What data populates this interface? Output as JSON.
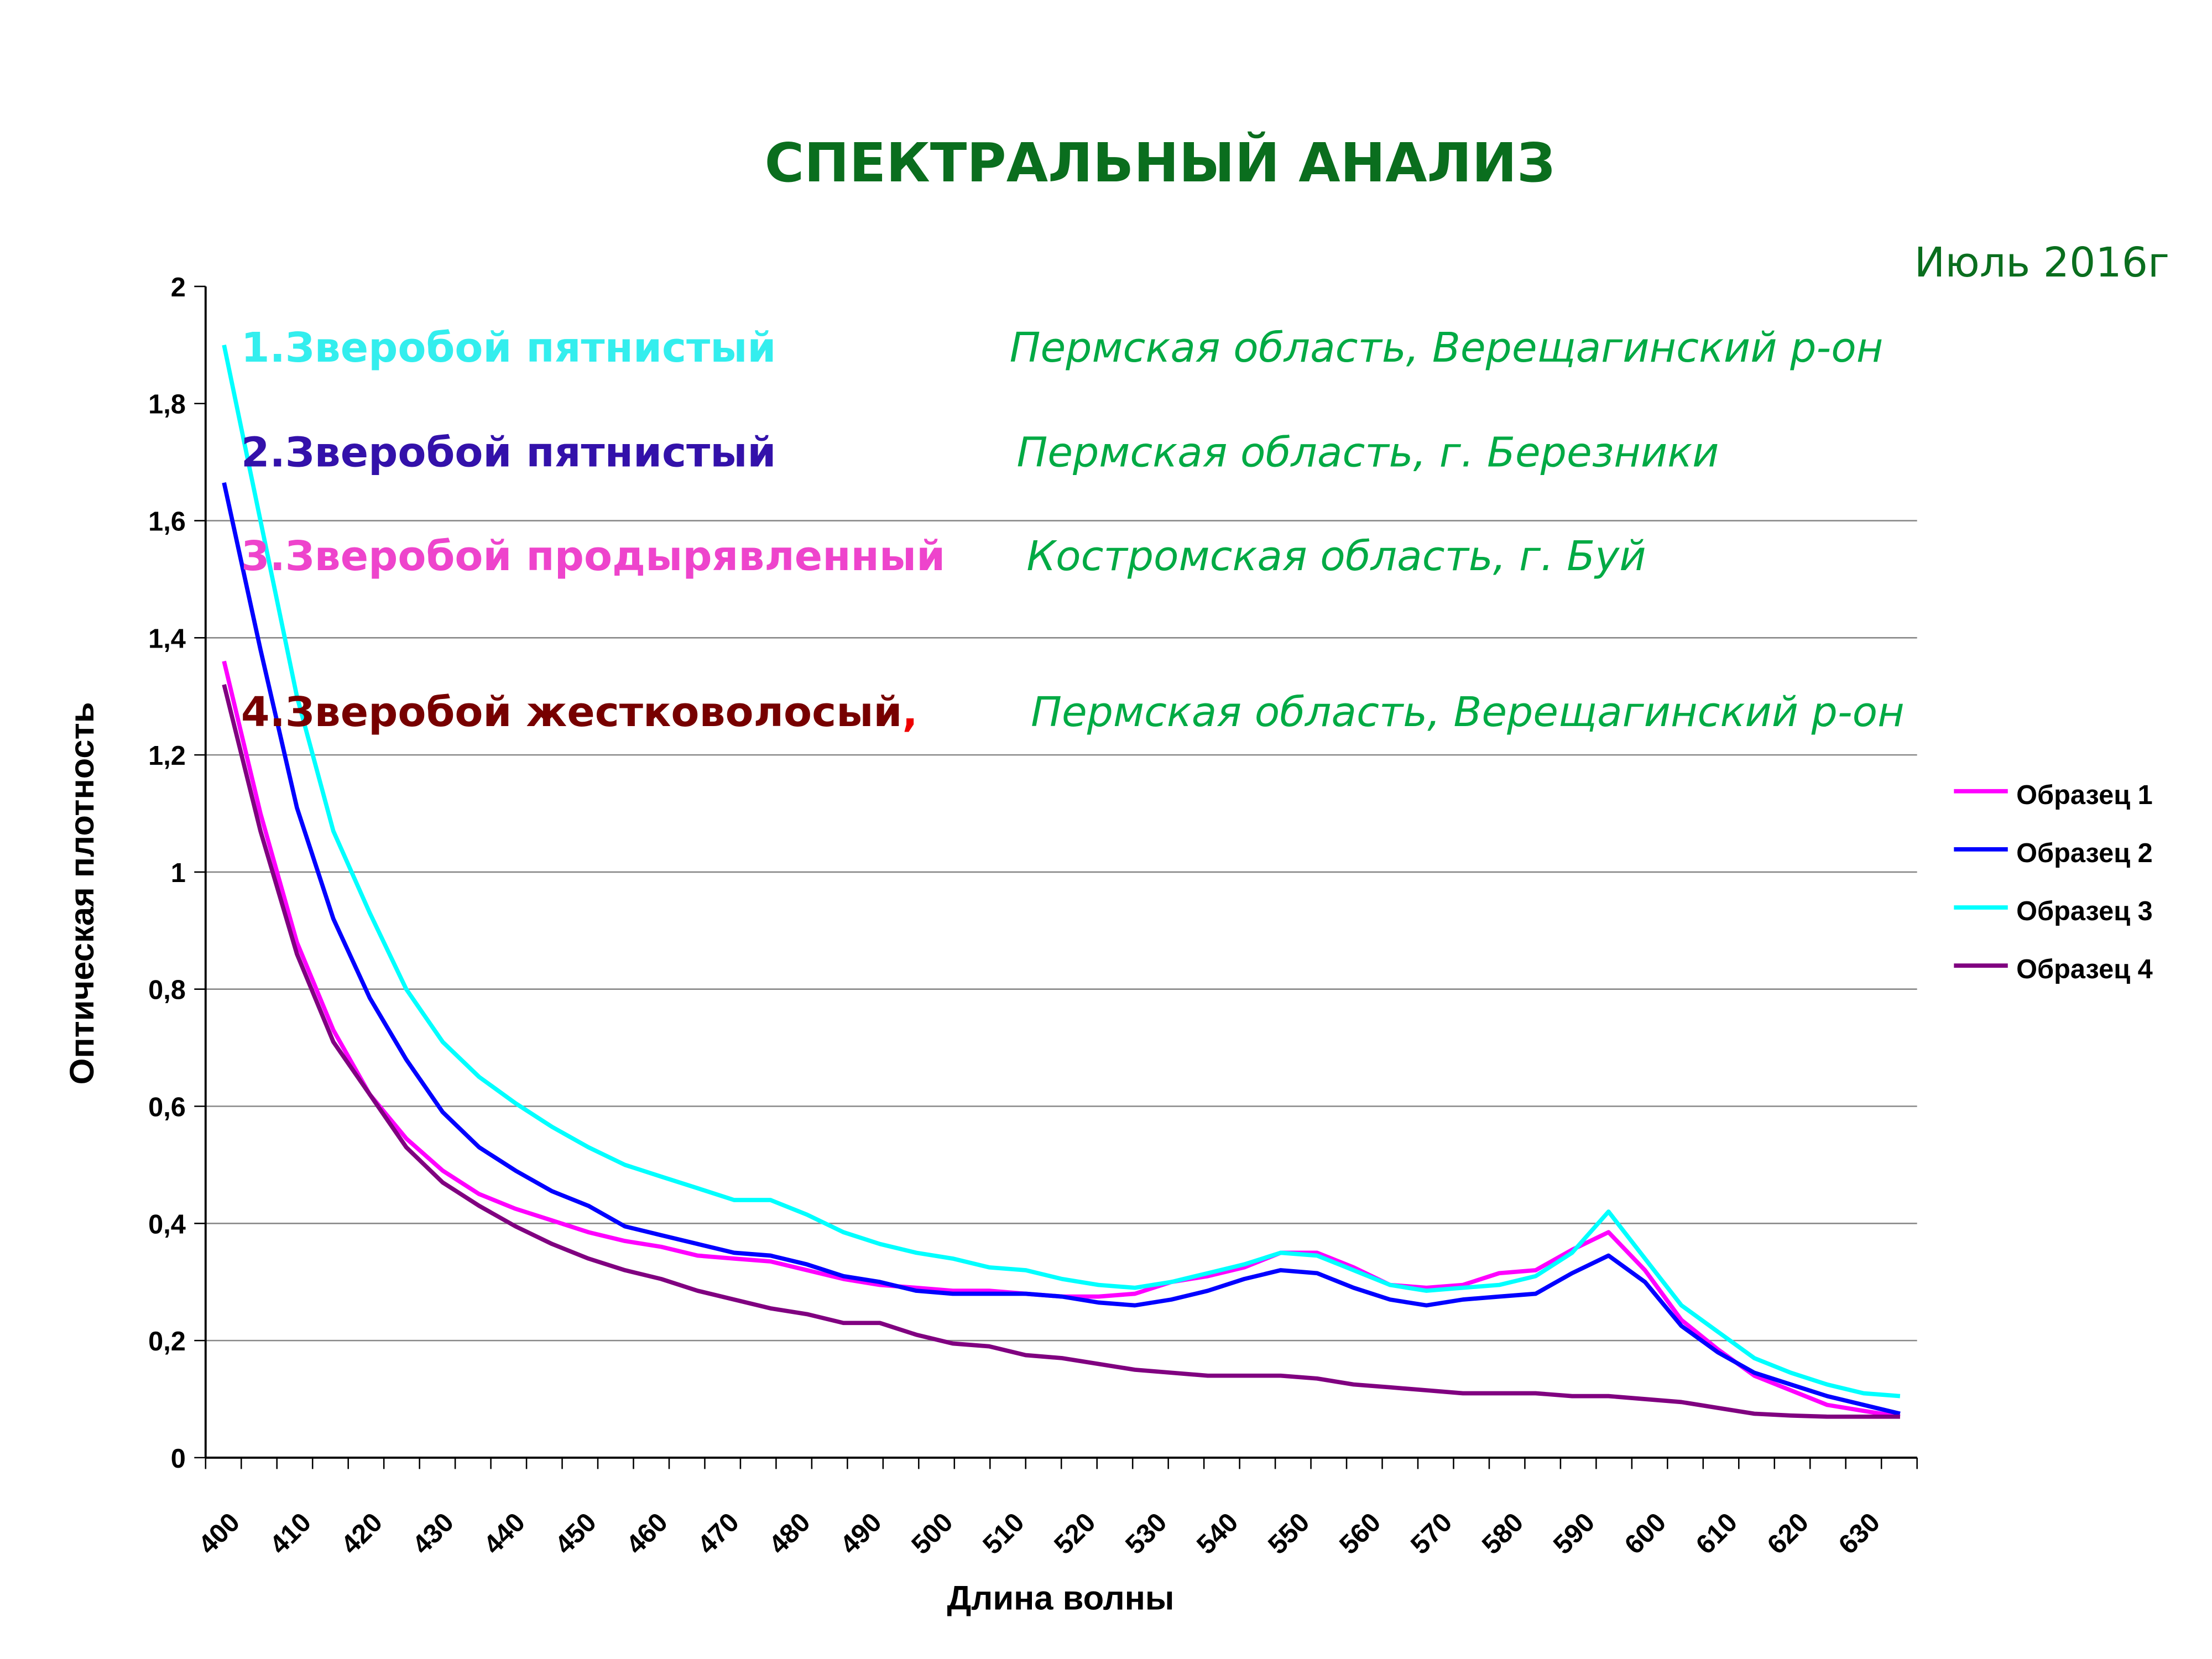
{
  "chart_data": {
    "type": "line",
    "title": "СПЕКТРАЛЬНЫЙ АНАЛИЗ",
    "subtitle": "Июль 2016г",
    "xlabel": "Длина волны",
    "ylabel": "Оптическая плотность",
    "ylim": [
      0,
      2
    ],
    "yticks": [
      "0",
      "0,2",
      "0,4",
      "0,6",
      "0,8",
      "1",
      "1,2",
      "1,4",
      "1,6",
      "1,8",
      "2"
    ],
    "xticks": [
      "400",
      "410",
      "420",
      "430",
      "440",
      "450",
      "460",
      "470",
      "480",
      "490",
      "500",
      "510",
      "520",
      "530",
      "540",
      "550",
      "560",
      "570",
      "580",
      "590",
      "600",
      "610",
      "620",
      "630"
    ],
    "x": [
      400,
      405,
      410,
      415,
      420,
      425,
      430,
      435,
      440,
      445,
      450,
      455,
      460,
      465,
      470,
      475,
      480,
      485,
      490,
      495,
      500,
      505,
      510,
      515,
      520,
      525,
      530,
      535,
      540,
      545,
      550,
      555,
      560,
      565,
      570,
      575,
      580,
      585,
      590,
      595,
      600,
      605,
      610,
      615,
      620,
      625,
      630
    ],
    "grid": true,
    "legend_position": "right",
    "series": [
      {
        "name": "Образец 1",
        "color": "#ff00ff",
        "values": [
          1.36,
          1.1,
          0.88,
          0.73,
          0.62,
          0.545,
          0.49,
          0.45,
          0.425,
          0.405,
          0.385,
          0.37,
          0.36,
          0.345,
          0.34,
          0.335,
          0.32,
          0.305,
          0.295,
          0.29,
          0.285,
          0.285,
          0.28,
          0.275,
          0.275,
          0.28,
          0.3,
          0.31,
          0.325,
          0.35,
          0.35,
          0.325,
          0.295,
          0.29,
          0.295,
          0.315,
          0.32,
          0.355,
          0.385,
          0.32,
          0.235,
          0.185,
          0.14,
          0.115,
          0.09,
          0.08,
          0.07
        ]
      },
      {
        "name": "Образец 2",
        "color": "#0000ff",
        "values": [
          1.665,
          1.38,
          1.11,
          0.92,
          0.785,
          0.68,
          0.59,
          0.53,
          0.49,
          0.455,
          0.43,
          0.395,
          0.38,
          0.365,
          0.35,
          0.345,
          0.33,
          0.31,
          0.3,
          0.285,
          0.28,
          0.28,
          0.28,
          0.275,
          0.265,
          0.26,
          0.27,
          0.285,
          0.305,
          0.32,
          0.315,
          0.29,
          0.27,
          0.26,
          0.27,
          0.275,
          0.28,
          0.315,
          0.345,
          0.3,
          0.225,
          0.18,
          0.145,
          0.125,
          0.105,
          0.09,
          0.075
        ]
      },
      {
        "name": "Образец 3",
        "color": "#00ffff",
        "values": [
          1.9,
          1.6,
          1.3,
          1.07,
          0.93,
          0.8,
          0.71,
          0.65,
          0.605,
          0.565,
          0.53,
          0.5,
          0.48,
          0.46,
          0.44,
          0.44,
          0.415,
          0.385,
          0.365,
          0.35,
          0.34,
          0.325,
          0.32,
          0.305,
          0.295,
          0.29,
          0.3,
          0.315,
          0.33,
          0.35,
          0.345,
          0.32,
          0.295,
          0.285,
          0.29,
          0.295,
          0.31,
          0.35,
          0.42,
          0.34,
          0.26,
          0.215,
          0.17,
          0.145,
          0.125,
          0.11,
          0.105
        ]
      },
      {
        "name": "Образец 4",
        "color": "#800080",
        "values": [
          1.32,
          1.07,
          0.86,
          0.71,
          0.62,
          0.53,
          0.47,
          0.43,
          0.395,
          0.365,
          0.34,
          0.32,
          0.305,
          0.285,
          0.27,
          0.255,
          0.245,
          0.23,
          0.23,
          0.21,
          0.195,
          0.19,
          0.175,
          0.17,
          0.16,
          0.15,
          0.145,
          0.14,
          0.14,
          0.14,
          0.135,
          0.125,
          0.12,
          0.115,
          0.11,
          0.11,
          0.11,
          0.105,
          0.105,
          0.1,
          0.095,
          0.085,
          0.075,
          0.072,
          0.07,
          0.07,
          0.07
        ]
      }
    ],
    "annotations": [
      {
        "name": "1.Зверобой пятнистый",
        "region": "Пермская область, Верещагинский р-он",
        "color": "#33eeee",
        "suffix": ""
      },
      {
        "name": "2.Зверобой пятнистый",
        "region": "Пермская область, г. Березники",
        "color": "#3311aa",
        "suffix": ""
      },
      {
        "name": "3.Зверобой продырявленный",
        "region": "Костромская область, г. Буй",
        "color": "#ee44cc",
        "suffix": ""
      },
      {
        "name": "4.Зверобой жестковолосый",
        "region": "Пермская область, Верещагинский р-он",
        "color": "#770000",
        "suffix": ","
      }
    ],
    "title_color": "#0a6e1e",
    "region_color": "#00aa44"
  }
}
